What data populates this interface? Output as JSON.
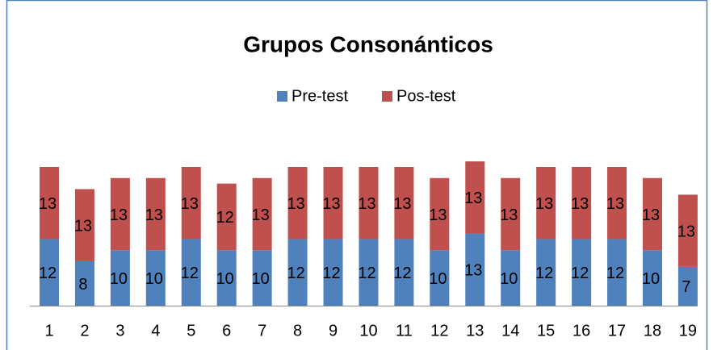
{
  "chart_data": {
    "type": "stacked-bar",
    "title": "Grupos Consonánticos",
    "categories": [
      "1",
      "2",
      "3",
      "4",
      "5",
      "6",
      "7",
      "8",
      "9",
      "10",
      "11",
      "12",
      "13",
      "14",
      "15",
      "16",
      "17",
      "18",
      "19"
    ],
    "series": [
      {
        "name": "Pre-test",
        "color": "#4f81bd",
        "values": [
          12,
          8,
          10,
          10,
          12,
          10,
          10,
          12,
          12,
          12,
          12,
          10,
          13,
          10,
          12,
          12,
          12,
          10,
          7
        ]
      },
      {
        "name": "Pos-test",
        "color": "#c0504d",
        "values": [
          13,
          13,
          13,
          13,
          13,
          12,
          13,
          13,
          13,
          13,
          13,
          13,
          13,
          13,
          13,
          13,
          13,
          13,
          13
        ]
      }
    ],
    "legend": "top"
  }
}
